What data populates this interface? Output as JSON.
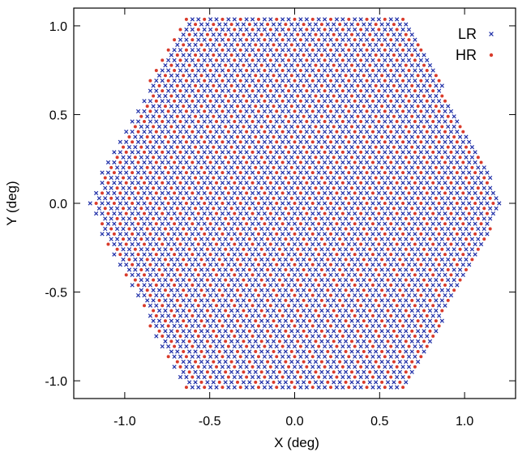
{
  "chart_data": {
    "type": "scatter",
    "title": "",
    "xlabel": "X (deg)",
    "ylabel": "Y (deg)",
    "xlim": [
      -1.3,
      1.3
    ],
    "ylim": [
      -1.1,
      1.1
    ],
    "xticks": [
      -1.0,
      -0.5,
      0.0,
      0.5,
      1.0
    ],
    "xtick_labels": [
      "-1.0",
      "-0.5",
      "0.0",
      "0.5",
      "1.0"
    ],
    "yticks": [
      -1.0,
      -0.5,
      0.0,
      0.5,
      1.0
    ],
    "ytick_labels": [
      "-1.0",
      "-0.5",
      "0.0",
      "0.5",
      "1.0"
    ],
    "grid": false,
    "legend_position": "top-right",
    "series": [
      {
        "name": "LR",
        "marker": "x",
        "color": "#1f2fa8"
      },
      {
        "name": "HR",
        "marker": "dot",
        "color": "#d93b2b"
      }
    ],
    "layout_description": "Hexagonal grid of fibres. Hexagon vertices at (±1.23, 0) and (±0.65, ±1.06). Spacing ~0.0354 deg in X and ~0.0288 deg in Y; alternate rows shifted by half spacing. Every third point along each row is HR.",
    "hexagon": {
      "x_half_width": 1.23,
      "y_half_height": 1.06,
      "top_half_width": 0.65,
      "dx": 0.0354,
      "dy": 0.0288,
      "hr_every": 3
    }
  }
}
